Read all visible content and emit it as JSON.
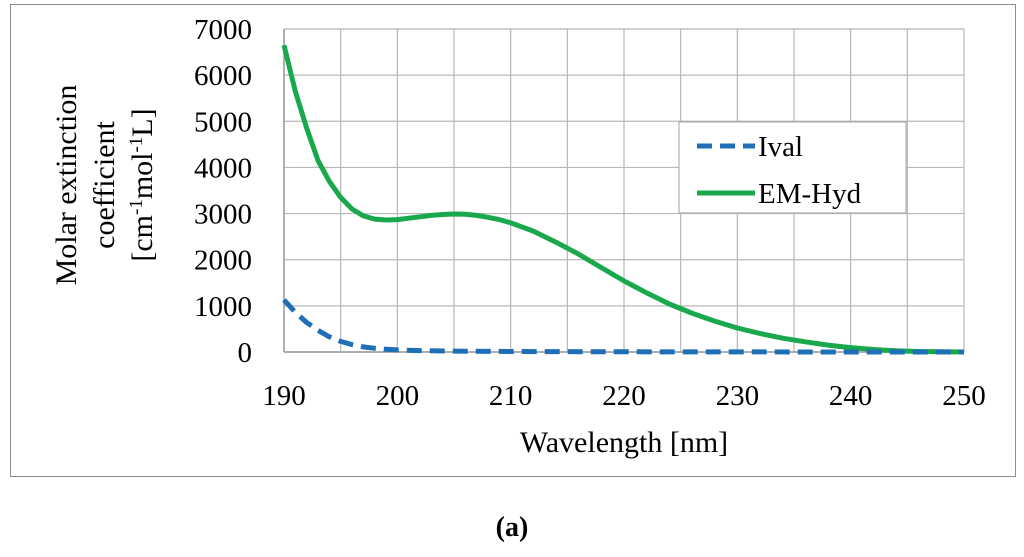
{
  "chart_data": {
    "type": "line",
    "title": "",
    "xlabel": "Wavelength [nm]",
    "ylabel_line1": "Molar extinction",
    "ylabel_line2": "coefficient",
    "ylabel_line3_parts": [
      "[cm",
      "-1",
      "mol",
      "-1",
      "L]"
    ],
    "xlim": [
      190,
      250
    ],
    "ylim": [
      0,
      7000
    ],
    "x_ticks": [
      190,
      200,
      210,
      220,
      230,
      240,
      250
    ],
    "y_ticks": [
      0,
      1000,
      2000,
      3000,
      4000,
      5000,
      6000,
      7000
    ],
    "grid": true,
    "legend_position": "right",
    "series": [
      {
        "name": "Ival",
        "color": "#1f6fb6",
        "style": "dashed",
        "x": [
          190,
          191,
          192,
          193,
          194,
          195,
          196,
          197,
          198,
          199,
          200,
          202,
          205,
          210,
          220,
          230,
          240,
          250
        ],
        "y": [
          1130,
          860,
          640,
          470,
          330,
          230,
          160,
          110,
          80,
          60,
          45,
          30,
          20,
          10,
          5,
          2,
          0,
          0
        ]
      },
      {
        "name": "EM-Hyd",
        "color": "#1aa84c",
        "style": "solid",
        "x": [
          190,
          191,
          192,
          193,
          194,
          195,
          196,
          197,
          198,
          199,
          200,
          201,
          202,
          203,
          204,
          205,
          206,
          207,
          208,
          209,
          210,
          212,
          214,
          216,
          218,
          220,
          222,
          224,
          226,
          228,
          230,
          232,
          234,
          236,
          238,
          240,
          242,
          244,
          246,
          248,
          250
        ],
        "y": [
          6650,
          5650,
          4850,
          4150,
          3700,
          3350,
          3100,
          2950,
          2880,
          2860,
          2870,
          2900,
          2930,
          2960,
          2980,
          2990,
          2985,
          2960,
          2920,
          2870,
          2800,
          2620,
          2380,
          2120,
          1830,
          1540,
          1280,
          1040,
          840,
          670,
          520,
          400,
          300,
          220,
          150,
          95,
          55,
          25,
          10,
          5,
          0
        ]
      }
    ]
  },
  "caption_letter": "a",
  "caption_open": "(",
  "caption_close": ")"
}
